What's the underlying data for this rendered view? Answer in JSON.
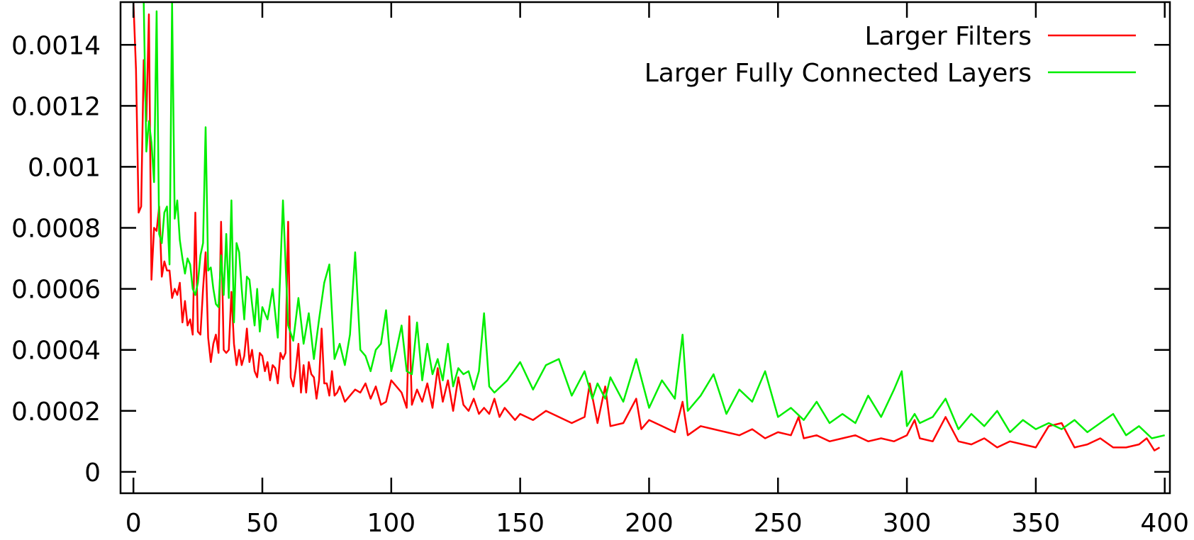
{
  "chart_data": {
    "type": "line",
    "title": "",
    "xlabel": "",
    "ylabel": "",
    "xlim": [
      -5,
      402
    ],
    "ylim": [
      -7e-05,
      0.00154
    ],
    "x_ticks": [
      {
        "value": 0,
        "label": "0"
      },
      {
        "value": 50,
        "label": "50"
      },
      {
        "value": 100,
        "label": "100"
      },
      {
        "value": 150,
        "label": "150"
      },
      {
        "value": 200,
        "label": "200"
      },
      {
        "value": 250,
        "label": "250"
      },
      {
        "value": 300,
        "label": "300"
      },
      {
        "value": 350,
        "label": "350"
      },
      {
        "value": 400,
        "label": "400"
      }
    ],
    "y_ticks": [
      {
        "value": 0,
        "label": "0"
      },
      {
        "value": 0.0002,
        "label": "0.0002"
      },
      {
        "value": 0.0004,
        "label": "0.0004"
      },
      {
        "value": 0.0006,
        "label": "0.0006"
      },
      {
        "value": 0.0008,
        "label": "0.0008"
      },
      {
        "value": 0.001,
        "label": "0.001"
      },
      {
        "value": 0.0012,
        "label": "0.0012"
      },
      {
        "value": 0.0014,
        "label": "0.0014"
      }
    ],
    "grid": false,
    "legend_position": "top-right",
    "series": [
      {
        "name": "Larger Filters",
        "color": "#ff0000",
        "x": [
          0,
          1,
          2,
          3,
          4,
          5,
          6,
          7,
          8,
          9,
          10,
          11,
          12,
          13,
          14,
          15,
          16,
          17,
          18,
          19,
          20,
          21,
          22,
          23,
          24,
          25,
          26,
          27,
          28,
          29,
          30,
          31,
          32,
          33,
          34,
          35,
          36,
          37,
          38,
          39,
          40,
          41,
          42,
          43,
          44,
          45,
          46,
          47,
          48,
          49,
          50,
          51,
          52,
          53,
          54,
          55,
          56,
          57,
          58,
          59,
          60,
          61,
          62,
          63,
          64,
          65,
          66,
          67,
          68,
          69,
          70,
          71,
          72,
          73,
          74,
          75,
          76,
          77,
          78,
          79,
          80,
          82,
          84,
          86,
          88,
          90,
          92,
          94,
          96,
          98,
          100,
          102,
          104,
          106,
          107,
          108,
          110,
          112,
          114,
          116,
          118,
          120,
          122,
          124,
          126,
          128,
          130,
          132,
          134,
          136,
          138,
          140,
          142,
          144,
          146,
          148,
          150,
          155,
          160,
          165,
          170,
          175,
          177,
          180,
          183,
          185,
          190,
          195,
          197,
          200,
          205,
          210,
          213,
          215,
          220,
          225,
          230,
          235,
          240,
          245,
          250,
          255,
          258,
          260,
          265,
          270,
          275,
          280,
          285,
          290,
          295,
          300,
          303,
          305,
          310,
          315,
          320,
          325,
          330,
          335,
          340,
          345,
          350,
          355,
          360,
          365,
          370,
          375,
          380,
          385,
          390,
          393,
          396,
          398
        ],
        "y": [
          0.00155,
          0.00132,
          0.00085,
          0.00087,
          0.00135,
          0.00115,
          0.0015,
          0.00063,
          0.0008,
          0.00079,
          0.00087,
          0.00064,
          0.00069,
          0.00066,
          0.00066,
          0.00057,
          0.0006,
          0.00058,
          0.00062,
          0.00049,
          0.00056,
          0.00048,
          0.0005,
          0.00045,
          0.00085,
          0.00046,
          0.00045,
          0.0006,
          0.00072,
          0.00044,
          0.00036,
          0.00042,
          0.00045,
          0.00039,
          0.00082,
          0.0004,
          0.00039,
          0.0004,
          0.00059,
          0.00042,
          0.00035,
          0.0004,
          0.00035,
          0.00038,
          0.00047,
          0.00036,
          0.0004,
          0.00033,
          0.00031,
          0.00039,
          0.00038,
          0.00033,
          0.00036,
          0.0003,
          0.00035,
          0.00034,
          0.00029,
          0.00039,
          0.00037,
          0.00039,
          0.00082,
          0.00031,
          0.00028,
          0.00034,
          0.00042,
          0.00026,
          0.00035,
          0.00026,
          0.00036,
          0.00032,
          0.00031,
          0.00024,
          0.0003,
          0.00047,
          0.00029,
          0.00029,
          0.00025,
          0.00033,
          0.00025,
          0.00026,
          0.00028,
          0.00023,
          0.00025,
          0.00027,
          0.00026,
          0.00029,
          0.00024,
          0.00028,
          0.00022,
          0.00023,
          0.0003,
          0.00028,
          0.00026,
          0.00021,
          0.00051,
          0.00022,
          0.00027,
          0.00023,
          0.00029,
          0.00021,
          0.00034,
          0.00023,
          0.0003,
          0.0002,
          0.00031,
          0.00022,
          0.0002,
          0.00024,
          0.00019,
          0.00021,
          0.00019,
          0.00024,
          0.00018,
          0.00021,
          0.00019,
          0.00017,
          0.00019,
          0.00017,
          0.0002,
          0.00018,
          0.00016,
          0.00018,
          0.00029,
          0.00016,
          0.00028,
          0.00015,
          0.00016,
          0.00024,
          0.00014,
          0.00017,
          0.00015,
          0.00013,
          0.00023,
          0.00012,
          0.00015,
          0.00014,
          0.00013,
          0.00012,
          0.00014,
          0.00011,
          0.00013,
          0.00012,
          0.00018,
          0.00011,
          0.00012,
          0.0001,
          0.00011,
          0.00012,
          0.0001,
          0.00011,
          0.0001,
          0.00012,
          0.00017,
          0.00011,
          0.0001,
          0.00018,
          0.0001,
          9e-05,
          0.00011,
          8e-05,
          0.0001,
          9e-05,
          8e-05,
          0.00015,
          0.00016,
          8e-05,
          9e-05,
          0.00011,
          8e-05,
          8e-05,
          9e-05,
          0.00011,
          7e-05,
          8e-05
        ]
      },
      {
        "name": "Larger Fully Connected Layers",
        "color": "#00ee00",
        "x": [
          4,
          5,
          6,
          7,
          8,
          9,
          10,
          11,
          12,
          13,
          14,
          15,
          16,
          17,
          18,
          19,
          20,
          21,
          22,
          23,
          24,
          25,
          26,
          27,
          28,
          29,
          30,
          31,
          32,
          33,
          34,
          35,
          36,
          37,
          38,
          39,
          40,
          41,
          42,
          43,
          44,
          45,
          46,
          47,
          48,
          49,
          50,
          52,
          54,
          56,
          58,
          60,
          62,
          64,
          66,
          68,
          70,
          72,
          74,
          76,
          78,
          80,
          82,
          84,
          86,
          88,
          90,
          92,
          94,
          96,
          98,
          100,
          102,
          104,
          106,
          108,
          110,
          112,
          114,
          116,
          118,
          120,
          122,
          124,
          126,
          128,
          130,
          132,
          134,
          136,
          138,
          140,
          145,
          150,
          155,
          160,
          165,
          170,
          175,
          178,
          180,
          183,
          185,
          190,
          195,
          200,
          205,
          210,
          213,
          215,
          220,
          225,
          230,
          235,
          240,
          245,
          250,
          255,
          260,
          265,
          270,
          275,
          280,
          285,
          290,
          295,
          298,
          300,
          303,
          305,
          310,
          315,
          320,
          325,
          330,
          335,
          340,
          345,
          350,
          355,
          360,
          365,
          370,
          375,
          380,
          385,
          390,
          395,
          400
        ],
        "y": [
          0.00155,
          0.00105,
          0.00115,
          0.00108,
          0.00095,
          0.00151,
          0.00078,
          0.00075,
          0.00085,
          0.00087,
          0.00068,
          0.00155,
          0.00083,
          0.00089,
          0.00076,
          0.0007,
          0.00065,
          0.0007,
          0.00068,
          0.0006,
          0.00058,
          0.00062,
          0.00071,
          0.00075,
          0.00113,
          0.00066,
          0.00067,
          0.0006,
          0.00055,
          0.00054,
          0.00071,
          0.00058,
          0.00078,
          0.00057,
          0.00089,
          0.00049,
          0.00075,
          0.00072,
          0.0006,
          0.0005,
          0.00064,
          0.00063,
          0.00055,
          0.00048,
          0.0006,
          0.00046,
          0.00054,
          0.0005,
          0.0006,
          0.00044,
          0.00089,
          0.00048,
          0.00043,
          0.00057,
          0.00042,
          0.00052,
          0.00037,
          0.0005,
          0.00062,
          0.00068,
          0.00037,
          0.00042,
          0.00035,
          0.00045,
          0.00072,
          0.0004,
          0.00038,
          0.00033,
          0.0004,
          0.00042,
          0.00053,
          0.00033,
          0.0004,
          0.00048,
          0.00033,
          0.00032,
          0.00049,
          0.0003,
          0.00042,
          0.00032,
          0.00037,
          0.0003,
          0.00042,
          0.00028,
          0.00034,
          0.00032,
          0.00033,
          0.00027,
          0.00033,
          0.00052,
          0.00028,
          0.00026,
          0.0003,
          0.00036,
          0.00027,
          0.00035,
          0.00037,
          0.00025,
          0.00033,
          0.00024,
          0.00029,
          0.00024,
          0.00031,
          0.00023,
          0.00037,
          0.00021,
          0.0003,
          0.00024,
          0.00045,
          0.0002,
          0.00025,
          0.00032,
          0.00019,
          0.00027,
          0.00023,
          0.00033,
          0.00018,
          0.00021,
          0.00017,
          0.00023,
          0.00016,
          0.00019,
          0.00016,
          0.00025,
          0.00018,
          0.00027,
          0.00033,
          0.00015,
          0.00019,
          0.00016,
          0.00018,
          0.00024,
          0.00014,
          0.00019,
          0.00015,
          0.0002,
          0.00013,
          0.00017,
          0.00014,
          0.00016,
          0.00014,
          0.00017,
          0.00013,
          0.00016,
          0.00019,
          0.00012,
          0.00015,
          0.00011,
          0.00012
        ]
      }
    ]
  }
}
